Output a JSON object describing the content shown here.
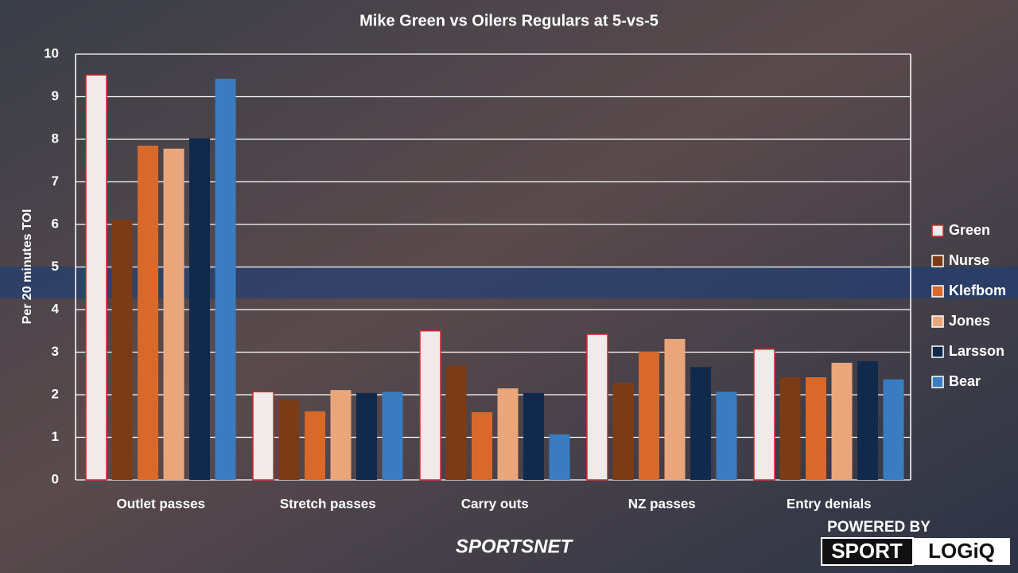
{
  "chart_data": {
    "type": "bar",
    "title": "Mike Green vs Oilers Regulars at 5-vs-5",
    "y_label": "Per 20 minutes TOI",
    "categories": [
      "Outlet passes",
      "Stretch passes",
      "Carry outs",
      "NZ passes",
      "Entry denials"
    ],
    "series": [
      {
        "name": "Green",
        "color": "#f1e9ea",
        "border": "#d3262e",
        "values": [
          9.51,
          2.07,
          3.5,
          3.42,
          3.07
        ]
      },
      {
        "name": "Nurse",
        "color": "#7b3c15",
        "values": [
          6.11,
          1.87,
          2.69,
          2.28,
          2.41
        ]
      },
      {
        "name": "Klefbom",
        "color": "#d9692a",
        "values": [
          7.85,
          1.61,
          1.59,
          3.01,
          2.41
        ]
      },
      {
        "name": "Jones",
        "color": "#e9a67b",
        "values": [
          7.78,
          2.11,
          2.15,
          3.31,
          2.75
        ]
      },
      {
        "name": "Larsson",
        "color": "#11294b",
        "values": [
          8.02,
          2.04,
          2.04,
          2.65,
          2.79
        ]
      },
      {
        "name": "Bear",
        "color": "#3b7cc0",
        "values": [
          9.42,
          2.07,
          1.07,
          2.07,
          2.36
        ]
      }
    ],
    "ylim": [
      0,
      10
    ],
    "yticks": [
      0,
      1,
      2,
      3,
      4,
      5,
      6,
      7,
      8,
      9,
      10
    ],
    "grid": true,
    "legend": "right"
  },
  "branding": {
    "broadcaster": "SPORTSNET",
    "powered_by": "POWERED BY",
    "sport": "SPORT",
    "logiq": "LOGiQ"
  }
}
